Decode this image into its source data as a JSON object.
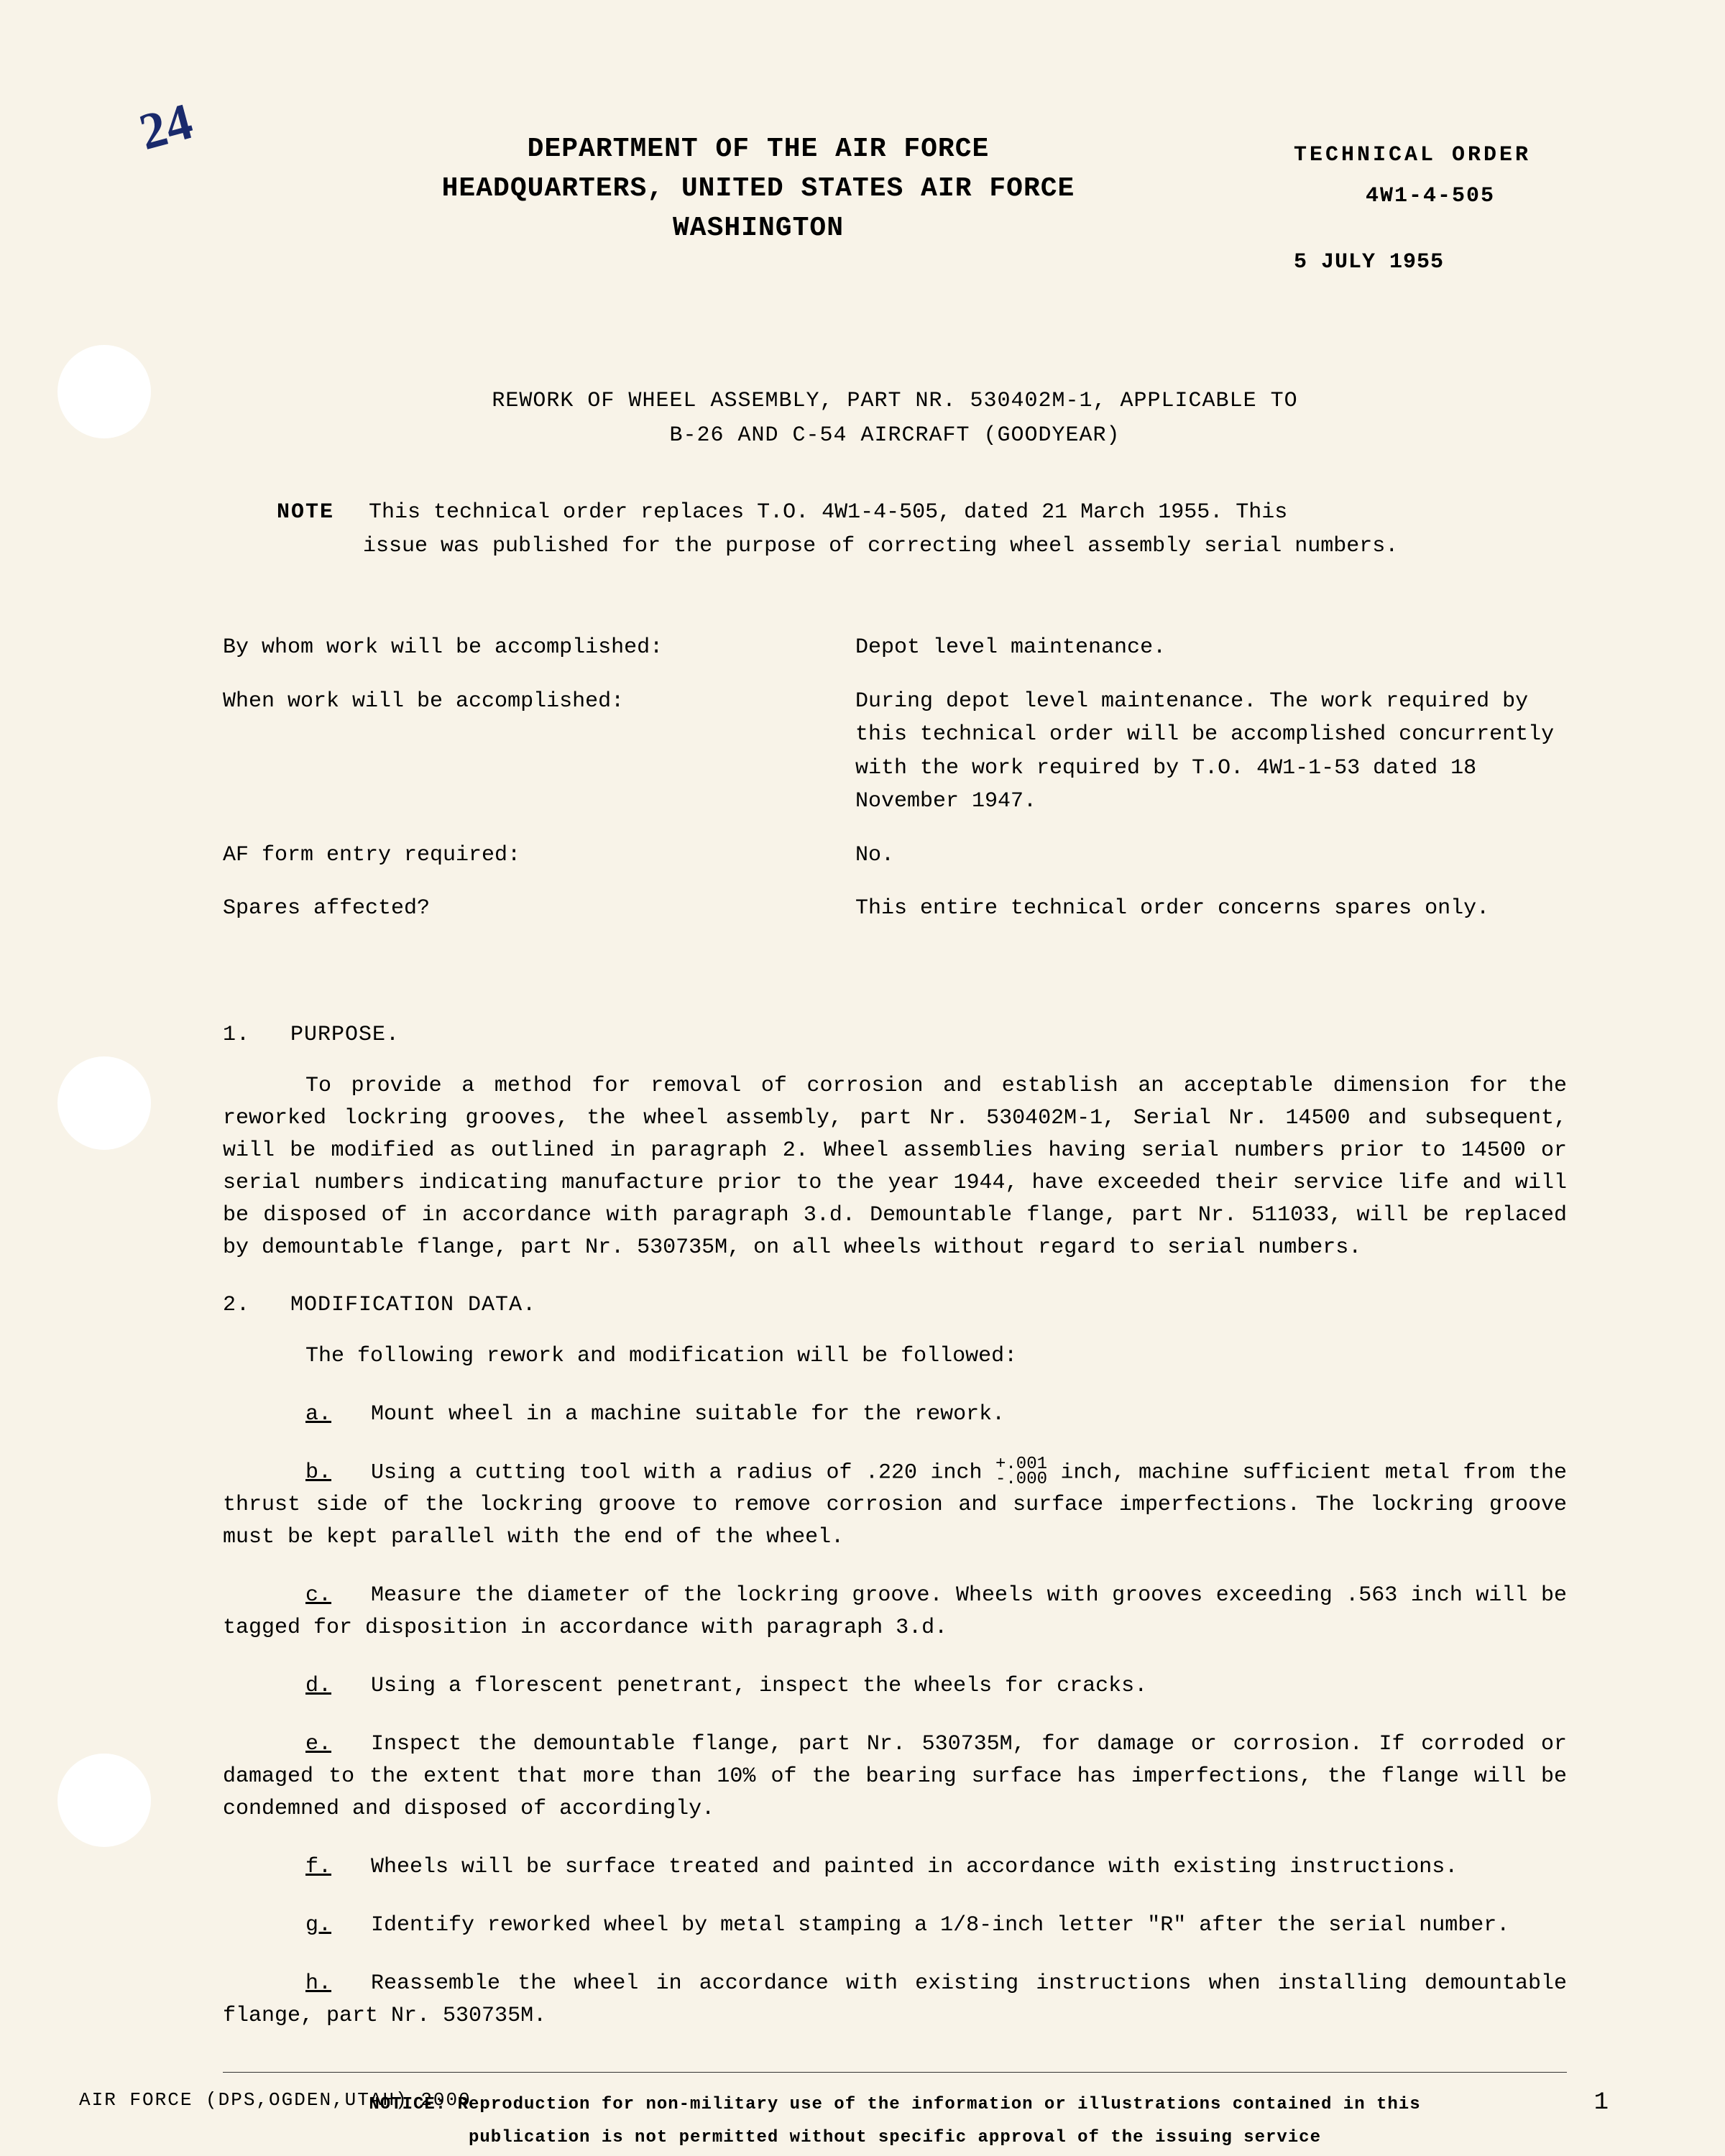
{
  "annotation": "24",
  "header": {
    "line1": "DEPARTMENT OF THE AIR FORCE",
    "line2": "HEADQUARTERS, UNITED STATES AIR FORCE",
    "line3": "WASHINGTON",
    "tech_order_label": "TECHNICAL ORDER",
    "tech_order_num": "4W1-4-505",
    "date": "5 JULY 1955"
  },
  "title": {
    "line1": "REWORK OF WHEEL ASSEMBLY, PART NR. 530402M-1, APPLICABLE TO",
    "line2": "B-26 AND C-54 AIRCRAFT (GOODYEAR)"
  },
  "note": {
    "label": "NOTE",
    "line1": "This technical order replaces T.O. 4W1-4-505, dated 21 March 1955. This",
    "line2": "issue was published for the purpose of correcting wheel assembly serial numbers."
  },
  "info": [
    {
      "label": "By whom work will be accomplished:",
      "value": "Depot level maintenance."
    },
    {
      "label": "When work will be accomplished:",
      "value": "During depot level maintenance. The work required by this technical order will be accomplished concurrently with the work required by T.O. 4W1-1-53 dated 18 November 1947."
    },
    {
      "label": "AF form entry required:",
      "value": "No."
    },
    {
      "label": "Spares affected?",
      "value": "This entire technical order concerns spares only."
    }
  ],
  "sections": {
    "purpose": {
      "num": "1.",
      "heading": "PURPOSE.",
      "body": "To provide a method for removal of corrosion and establish an acceptable dimension for the reworked lockring grooves, the wheel assembly, part Nr. 530402M-1, Serial Nr. 14500 and subsequent, will be modified as outlined in paragraph 2. Wheel assemblies having serial numbers prior to 14500 or serial numbers indicating manufacture prior to the year 1944, have exceeded their service life and will be disposed of in accordance with paragraph 3.d. Demountable flange, part Nr. 511033, will be replaced by demountable flange, part Nr. 530735M, on all wheels without regard to serial numbers."
    },
    "modification": {
      "num": "2.",
      "heading": "MODIFICATION DATA.",
      "intro": "The following rework and modification will be followed:",
      "items": [
        {
          "letter": "a.",
          "text": "Mount wheel in a machine suitable for the rework."
        },
        {
          "letter": "b.",
          "text_before": "Using a cutting tool with a radius of .220 inch ",
          "tol_top": "+.001",
          "tol_bot": "-.000",
          "text_after": " inch, machine sufficient metal from the thrust side of the lockring groove to remove corrosion and surface imperfections. The lockring groove must be kept parallel with the end of the wheel."
        },
        {
          "letter": "c.",
          "text": "Measure the diameter of the lockring groove. Wheels with grooves exceeding .563 inch will be tagged for disposition in accordance with paragraph 3.d."
        },
        {
          "letter": "d.",
          "text": "Using a florescent penetrant, inspect the wheels for cracks."
        },
        {
          "letter": "e.",
          "text": "Inspect the demountable flange, part Nr. 530735M, for damage or corrosion. If corroded or damaged to the extent that more than 10% of the bearing surface has imperfections, the flange will be condemned and disposed of accordingly."
        },
        {
          "letter": "f.",
          "text": "Wheels will be surface treated and painted in accordance with existing instructions."
        },
        {
          "letter": "g.",
          "text": "Identify reworked wheel by metal stamping a 1/8-inch letter \"R\" after the serial number."
        },
        {
          "letter": "h.",
          "text": "Reassemble the wheel in accordance with existing instructions when installing demountable flange, part Nr. 530735M."
        }
      ]
    }
  },
  "notice": {
    "label": "NOTICE:",
    "line1": "Reproduction for non-military use of the information or illustrations contained in this",
    "line2": "publication is not permitted without specific approval of the issuing service"
  },
  "footer": {
    "left": "AIR FORCE (DPS,OGDEN,UTAH) 2000",
    "page": "1"
  },
  "colors": {
    "paper": "#f8f3e8",
    "text": "#1a1a1a",
    "ink_annotation": "#1a2a6c"
  },
  "fonts": {
    "body_family": "Courier New, monospace",
    "header_size_pt": 38,
    "body_size_pt": 30,
    "notice_size_pt": 24
  }
}
